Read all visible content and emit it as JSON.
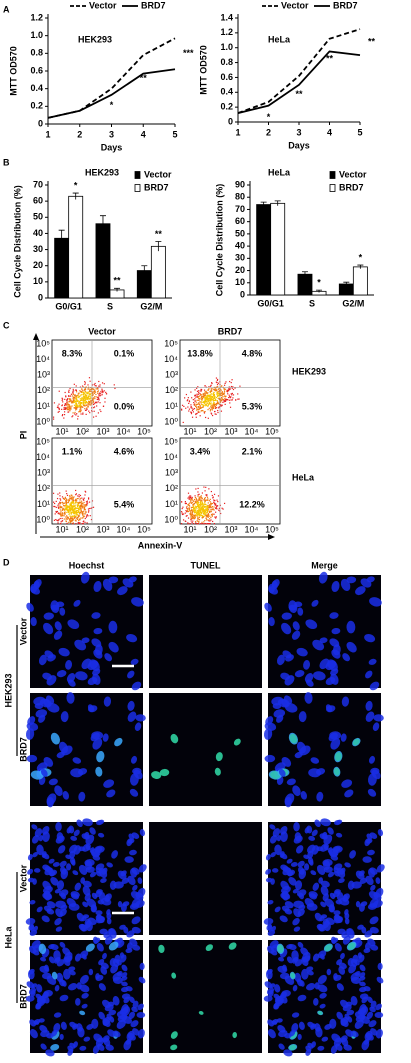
{
  "panel_labels": [
    "A",
    "B",
    "C",
    "D"
  ],
  "chart_data": [
    {
      "type": "line",
      "title": "HEK293",
      "x": [
        1,
        2,
        3,
        4,
        5
      ],
      "xlim": [
        1,
        5
      ],
      "xticks": [
        1,
        2,
        3,
        4,
        5
      ],
      "x_label": "Days",
      "y_label": "MTT OD570",
      "ylim": [
        0,
        1.2
      ],
      "yticks": [
        0,
        0.2,
        0.4,
        0.6,
        0.8,
        {
          "value": 1,
          "label": "1.0"
        },
        1.2
      ],
      "series": [
        {
          "name": "Vector",
          "color": "#000000",
          "dashed": true,
          "values": [
            0.07,
            0.15,
            0.4,
            0.78,
            0.97
          ]
        },
        {
          "name": "BRD7",
          "color": "#000000",
          "dashed": false,
          "values": [
            0.07,
            0.15,
            0.33,
            0.57,
            0.62
          ]
        }
      ],
      "annotations": [
        null,
        null,
        "*",
        "**",
        "***"
      ]
    },
    {
      "type": "line",
      "title": "HeLa",
      "x": [
        1,
        2,
        3,
        4,
        5
      ],
      "xlim": [
        1,
        5
      ],
      "xticks": [
        1,
        2,
        3,
        4,
        5
      ],
      "x_label": "Days",
      "y_label": "MTT OD570",
      "ylim": [
        0,
        1.4
      ],
      "yticks": [
        0,
        0.2,
        0.4,
        0.6,
        0.8,
        {
          "value": 1,
          "label": "1.0"
        },
        1.2,
        1.4
      ],
      "series": [
        {
          "name": "Vector",
          "color": "#000000",
          "dashed": true,
          "values": [
            0.12,
            0.27,
            0.62,
            1.12,
            1.25
          ]
        },
        {
          "name": "BRD7",
          "color": "#000000",
          "dashed": false,
          "values": [
            0.12,
            0.22,
            0.5,
            0.95,
            0.9
          ]
        }
      ],
      "annotations": [
        null,
        "*",
        "**",
        "**",
        "**"
      ]
    },
    {
      "type": "bar",
      "title": "HEK293",
      "categories": [
        "G0/G1",
        "S",
        "G2/M"
      ],
      "y_label": "Cell Cycle Distribution (%)",
      "ylim": [
        0,
        70
      ],
      "yticks": [
        0,
        10,
        20,
        30,
        40,
        50,
        60,
        70
      ],
      "series": [
        {
          "name": "Vector",
          "color": "#000000",
          "values": [
            37,
            46,
            17
          ],
          "errors": [
            5,
            5,
            3
          ]
        },
        {
          "name": "BRD7",
          "color": "#ffffff",
          "values": [
            63,
            5,
            32
          ],
          "errors": [
            2,
            1,
            3
          ]
        }
      ],
      "annotations": [
        "*",
        "**",
        "**"
      ]
    },
    {
      "type": "bar",
      "title": "HeLa",
      "categories": [
        "G0/G1",
        "S",
        "G2/M"
      ],
      "y_label": "Cell Cycle Distribution (%)",
      "ylim": [
        0,
        90
      ],
      "yticks": [
        0,
        10,
        20,
        30,
        40,
        50,
        60,
        70,
        80,
        90
      ],
      "series": [
        {
          "name": "Vector",
          "color": "#000000",
          "values": [
            74,
            17,
            9
          ],
          "errors": [
            2,
            2,
            1.5
          ]
        },
        {
          "name": "BRD7",
          "color": "#ffffff",
          "values": [
            75,
            3,
            23
          ],
          "errors": [
            2,
            1,
            1.5
          ]
        }
      ],
      "annotations": [
        null,
        "*",
        "*"
      ]
    }
  ],
  "flow": {
    "columns": [
      "Vector",
      "BRD7"
    ],
    "rows": [
      "HEK293",
      "HeLa"
    ],
    "x_label": "Annexin-V",
    "y_label": "PI",
    "y_ticks": [
      "10⁰",
      "10¹",
      "10²",
      "10³",
      "10⁴",
      "10⁵"
    ],
    "x_ticks": [
      "10¹",
      "10²",
      "10³",
      "10⁴",
      "10⁵"
    ],
    "plots": [
      [
        {
          "upper_left": "8.3%",
          "upper_right": "0.1%",
          "lower_right": "0.0%"
        },
        {
          "upper_left": "13.8%",
          "upper_right": "4.8%",
          "lower_right": "5.3%"
        }
      ],
      [
        {
          "upper_left": "1.1%",
          "upper_right": "4.6%",
          "lower_right": "5.4%"
        },
        {
          "upper_left": "3.4%",
          "upper_right": "2.1%",
          "lower_right": "12.2%"
        }
      ]
    ]
  },
  "micrographs": {
    "columns": [
      "Hoechst",
      "TUNEL",
      "Merge"
    ],
    "groups": [
      {
        "name": "HEK293",
        "rows": [
          "Vector",
          "BRD7"
        ]
      },
      {
        "name": "HeLa",
        "rows": [
          "Vector",
          "BRD7"
        ]
      }
    ]
  }
}
